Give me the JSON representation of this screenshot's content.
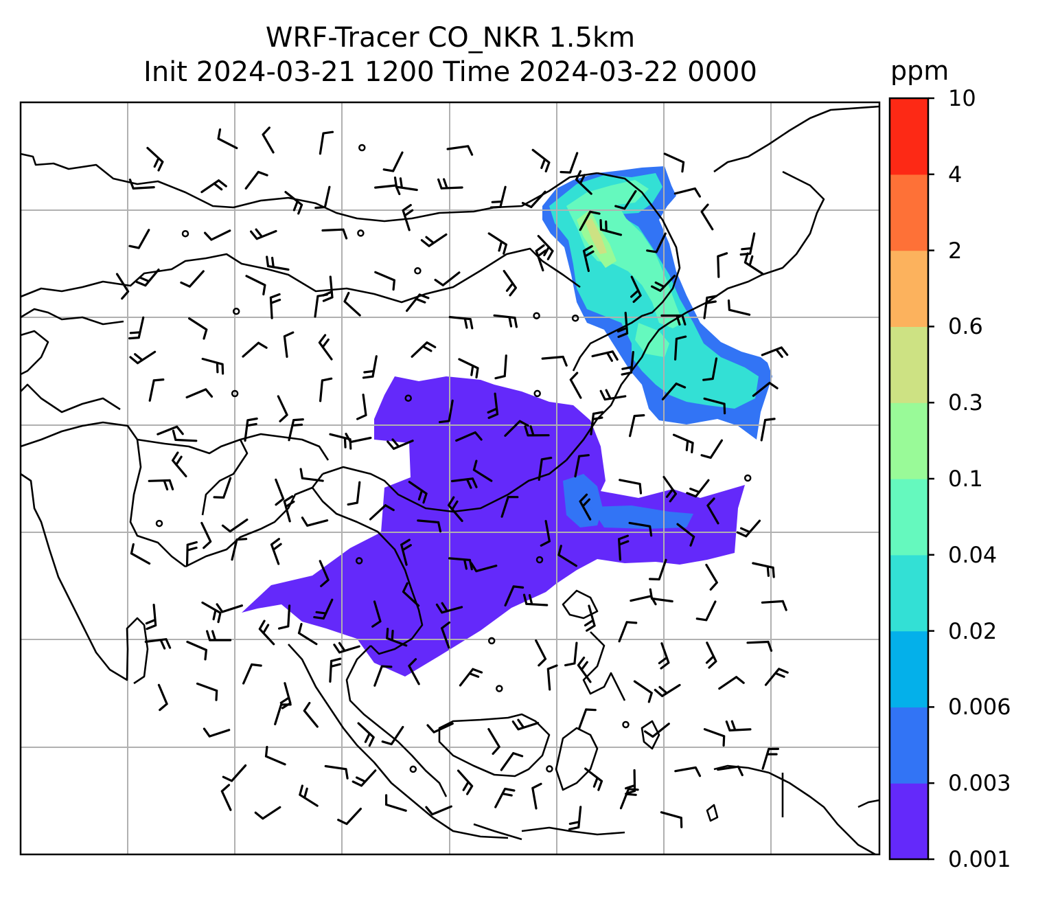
{
  "title": {
    "line1": "WRF-Tracer CO_NKR 1.5km",
    "line2": "Init 2024-03-21 1200 Time 2024-03-22 0000"
  },
  "colorbar": {
    "unit": "ppm",
    "levels": [
      "0.001",
      "0.003",
      "0.006",
      "0.02",
      "0.04",
      "0.1",
      "0.3",
      "0.6",
      "2",
      "4",
      "10"
    ],
    "colors": [
      "#6429fa",
      "#3274f5",
      "#04b0ea",
      "#33e0d5",
      "#65f9be",
      "#99fa98",
      "#cde283",
      "#fcb25d",
      "#fe7137",
      "#fd2915"
    ]
  },
  "map": {
    "field": "CO_NKR tracer concentration with wind barbs",
    "gridlines": true,
    "coastline_color": "#000000",
    "grid_color": "#b0b0b0"
  }
}
